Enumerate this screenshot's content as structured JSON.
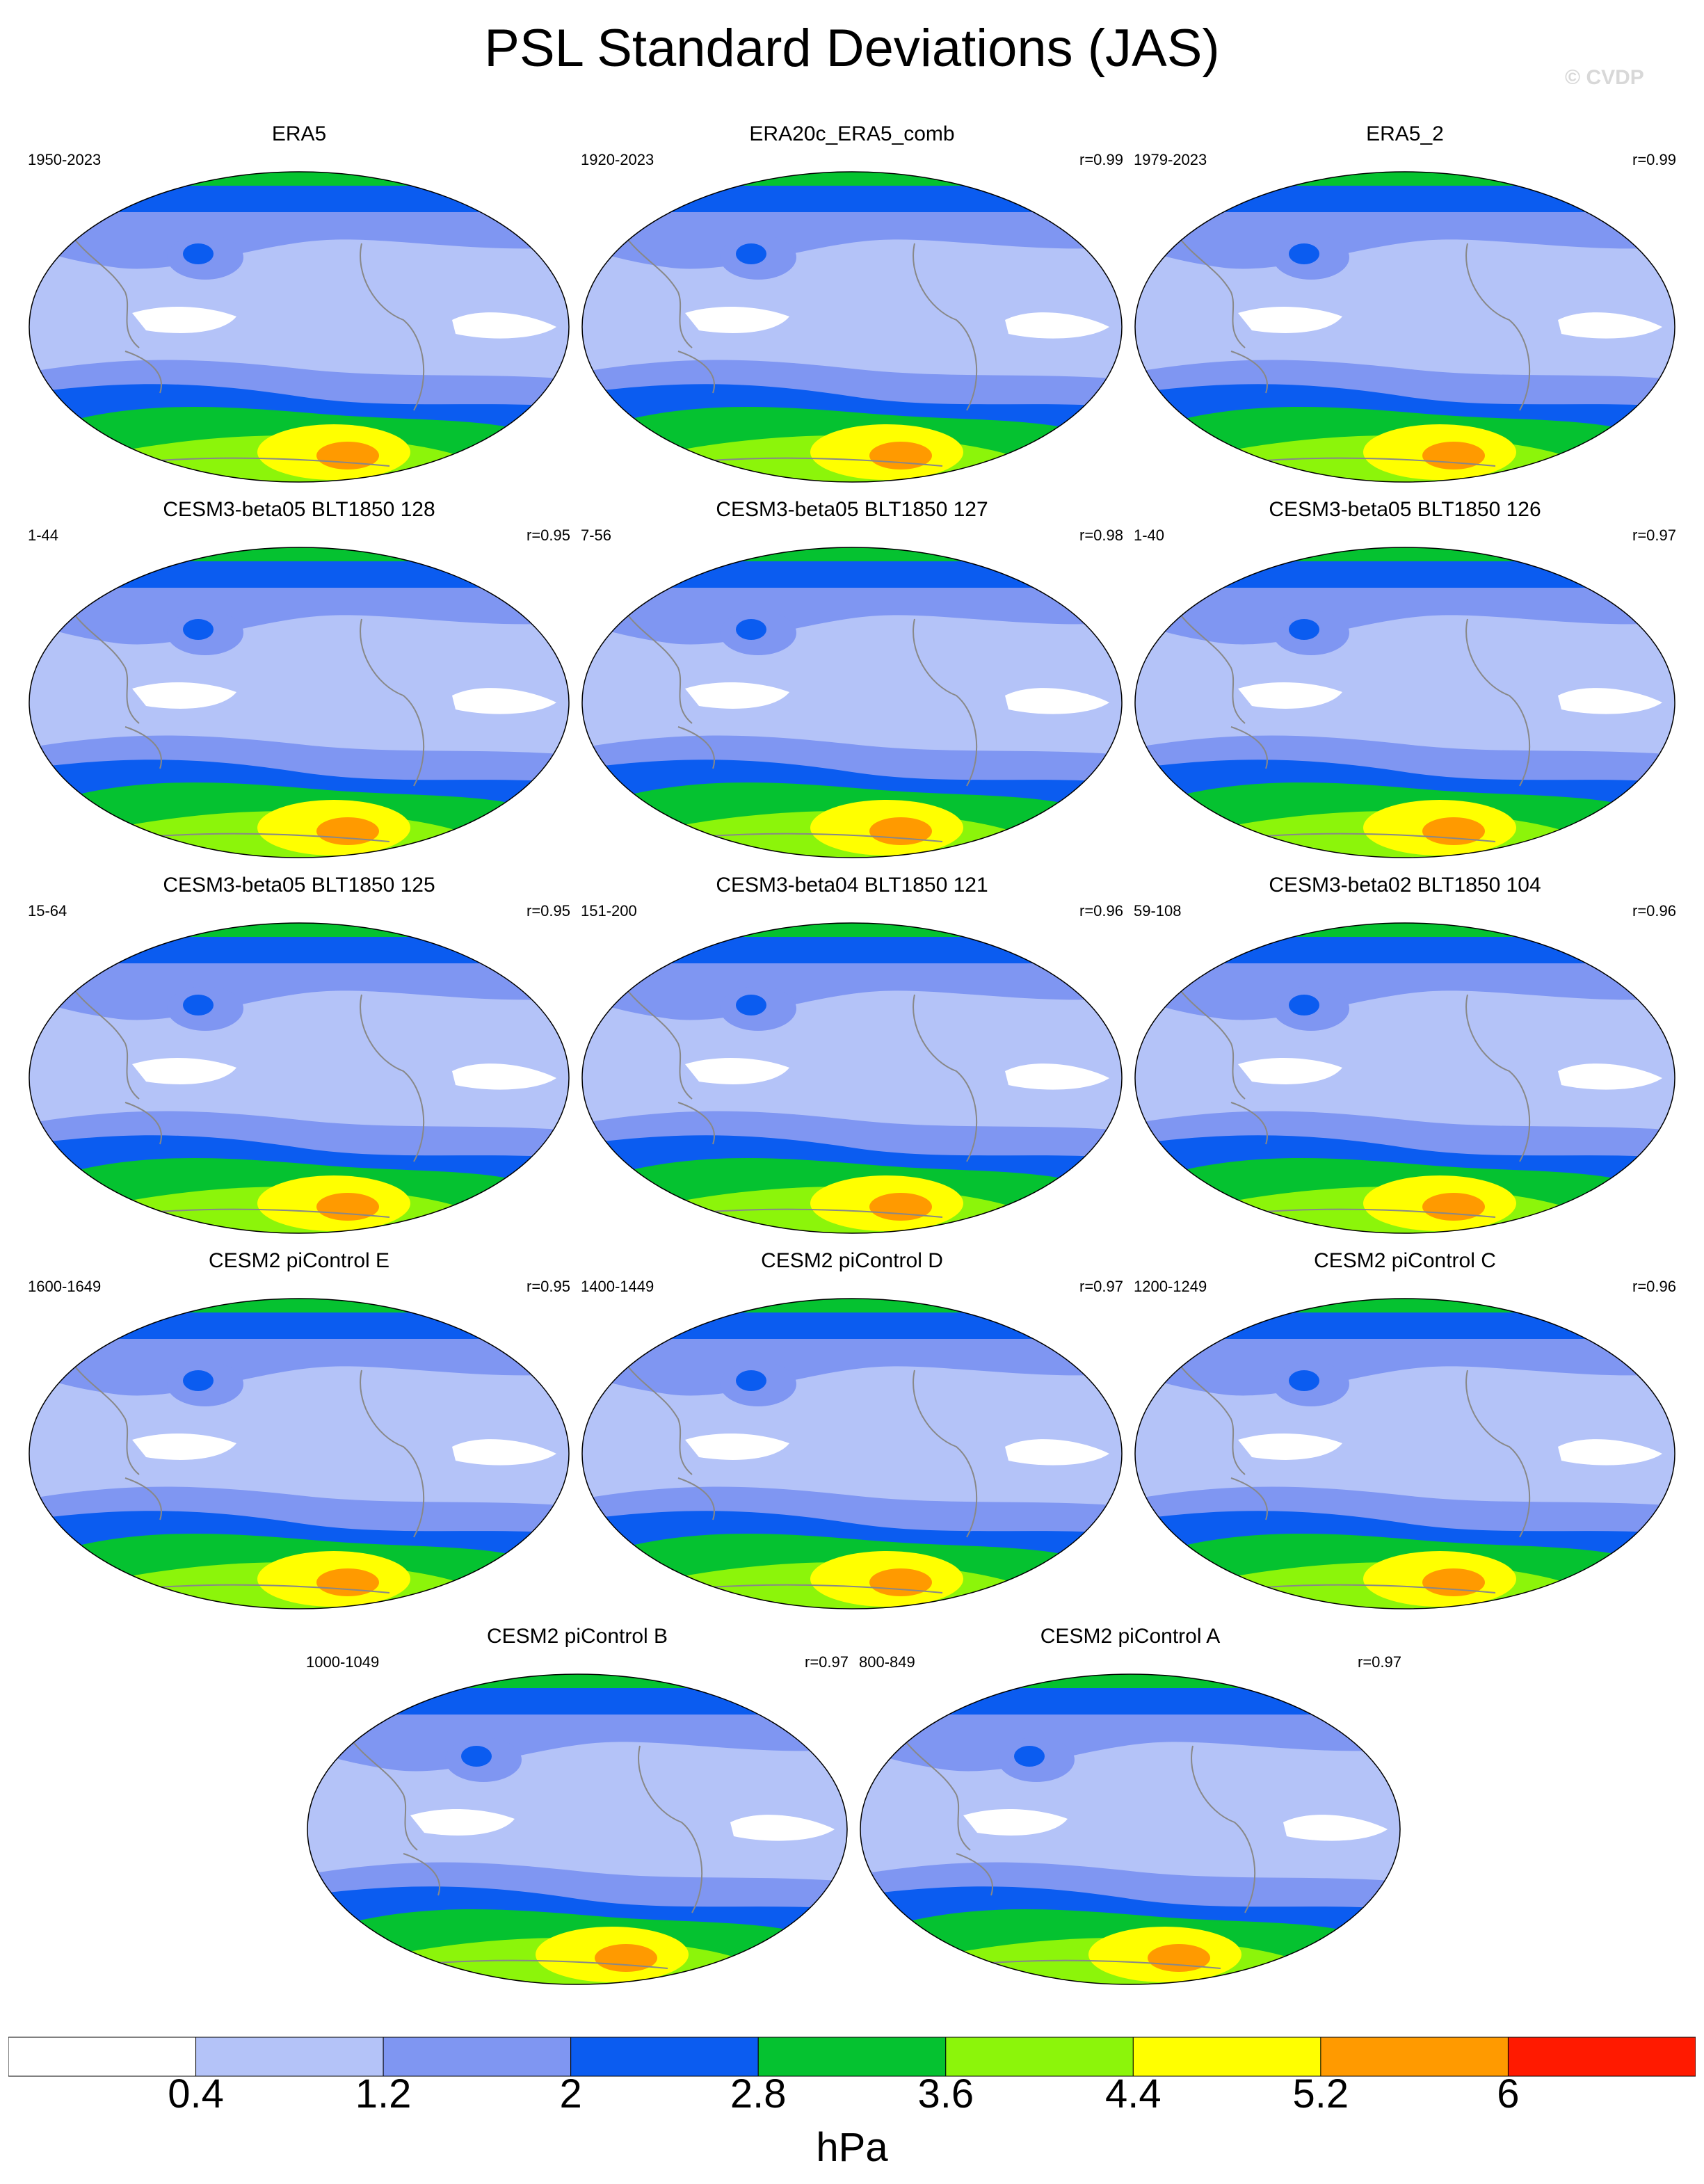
{
  "title": "PSL Standard Deviations (JAS)",
  "watermark": "© CVDP",
  "panels": [
    {
      "name": "ERA5",
      "range": "1950-2023",
      "corr": ""
    },
    {
      "name": "ERA20c_ERA5_comb",
      "range": "1920-2023",
      "corr": "r=0.99"
    },
    {
      "name": "ERA5_2",
      "range": "1979-2023",
      "corr": "r=0.99"
    },
    {
      "name": "CESM3-beta05 BLT1850 128",
      "range": "1-44",
      "corr": "r=0.95"
    },
    {
      "name": "CESM3-beta05 BLT1850 127",
      "range": "7-56",
      "corr": "r=0.98"
    },
    {
      "name": "CESM3-beta05 BLT1850 126",
      "range": "1-40",
      "corr": "r=0.97"
    },
    {
      "name": "CESM3-beta05 BLT1850 125",
      "range": "15-64",
      "corr": "r=0.95"
    },
    {
      "name": "CESM3-beta04 BLT1850 121",
      "range": "151-200",
      "corr": "r=0.96"
    },
    {
      "name": "CESM3-beta02 BLT1850 104",
      "range": "59-108",
      "corr": "r=0.96"
    },
    {
      "name": "CESM2 piControl E",
      "range": "1600-1649",
      "corr": "r=0.95"
    },
    {
      "name": "CESM2 piControl D",
      "range": "1400-1449",
      "corr": "r=0.97"
    },
    {
      "name": "CESM2 piControl C",
      "range": "1200-1249",
      "corr": "r=0.96"
    },
    {
      "name": "CESM2 piControl B",
      "range": "1000-1049",
      "corr": "r=0.97"
    },
    {
      "name": "CESM2 piControl A",
      "range": "800-849",
      "corr": "r=0.97"
    }
  ],
  "colorbar": {
    "colors": [
      "#ffffff",
      "#b4c3f8",
      "#7f96f2",
      "#0b5cf0",
      "#05c230",
      "#8cf50a",
      "#ffff00",
      "#ff9a00",
      "#ff1a00"
    ],
    "labels": [
      "0.4",
      "1.2",
      "2",
      "2.8",
      "3.6",
      "4.4",
      "5.2",
      "6"
    ],
    "units": "hPa"
  }
}
